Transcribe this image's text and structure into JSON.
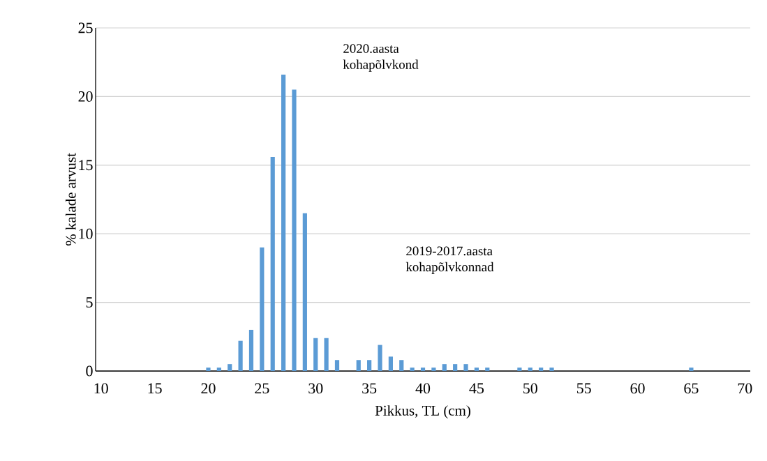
{
  "chart_data": {
    "type": "bar",
    "xlabel": "Pikkus, TL (cm)",
    "ylabel": "% kalade arvust",
    "x": [
      20,
      21,
      22,
      23,
      24,
      25,
      26,
      27,
      28,
      29,
      30,
      31,
      32,
      33,
      34,
      35,
      36,
      37,
      38,
      39,
      40,
      41,
      42,
      43,
      44,
      45,
      46,
      47,
      48,
      49,
      50,
      51,
      52,
      65
    ],
    "values": [
      0.25,
      0.25,
      0.5,
      2.2,
      3.0,
      9.0,
      15.6,
      21.6,
      20.5,
      11.5,
      2.4,
      2.4,
      0.8,
      0,
      0.8,
      0.8,
      1.9,
      1.05,
      0.8,
      0.25,
      0.25,
      0.25,
      0.5,
      0.5,
      0.5,
      0.25,
      0.25,
      0,
      0,
      0.25,
      0.25,
      0.25,
      0.25,
      0.25
    ],
    "color": "#5b9bd5",
    "xlim": [
      9.5,
      70.5
    ],
    "xticks": [
      10,
      15,
      20,
      25,
      30,
      35,
      40,
      45,
      50,
      55,
      60,
      65,
      70
    ],
    "ylim": [
      0,
      25
    ],
    "yticks": [
      0,
      5,
      10,
      15,
      20,
      25
    ],
    "grid": "y",
    "annotations": [
      "2020.aasta kohapõlvkond",
      "2019-2017.aasta kohapõlvkonnad"
    ]
  }
}
